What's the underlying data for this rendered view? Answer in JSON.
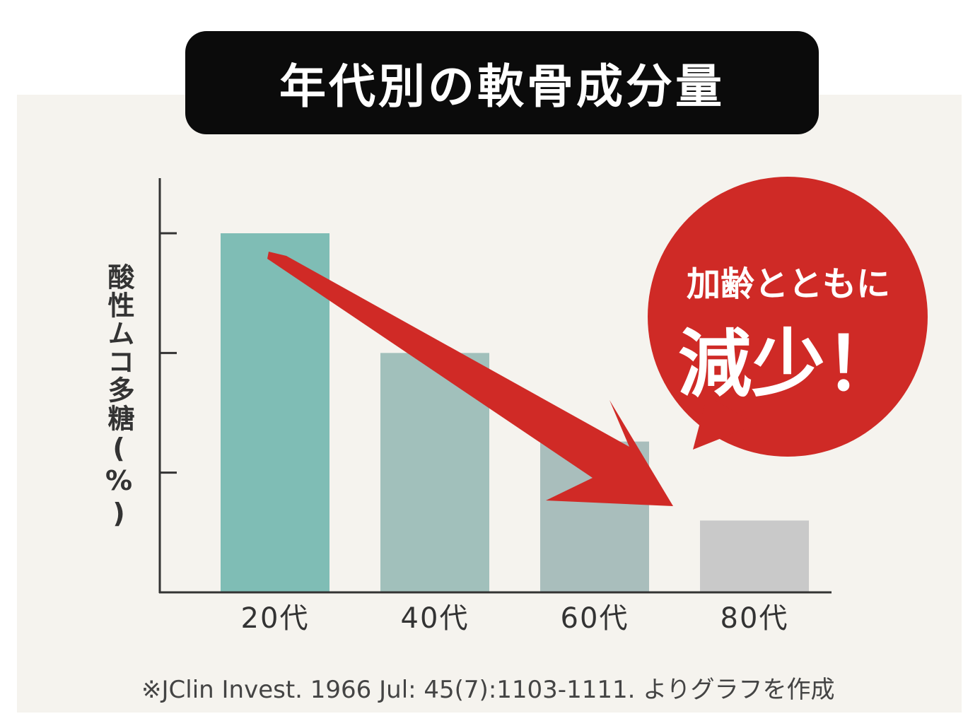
{
  "colors": {
    "background": "#f5f3ee",
    "title_bg": "#0b0b0b",
    "axis": "#333333",
    "bars": [
      "#7fbdb5",
      "#a1c0bb",
      "#a9bebc",
      "#c9c9c9"
    ],
    "arrow": "#d02a26",
    "bubble": "#cf2a26"
  },
  "chart_data": {
    "type": "bar",
    "title": "年代別の軟骨成分量",
    "ylabel": "酸性ムコ多糖(%)",
    "xlabel": "",
    "categories": [
      "20代",
      "40代",
      "60代",
      "80代"
    ],
    "values": [
      3.0,
      2.0,
      1.26,
      0.6
    ],
    "ylim": [
      0,
      3.5
    ],
    "y_ticks": [
      1,
      2,
      3
    ],
    "y_tick_labels_shown": false,
    "grid": false,
    "annotation": {
      "line1": "加齢とともに",
      "line2": "減少！"
    },
    "trend_arrow": "decreasing",
    "footnote": "※JClin Invest. 1966 Jul: 45(7):1103-1111. よりグラフを作成"
  }
}
